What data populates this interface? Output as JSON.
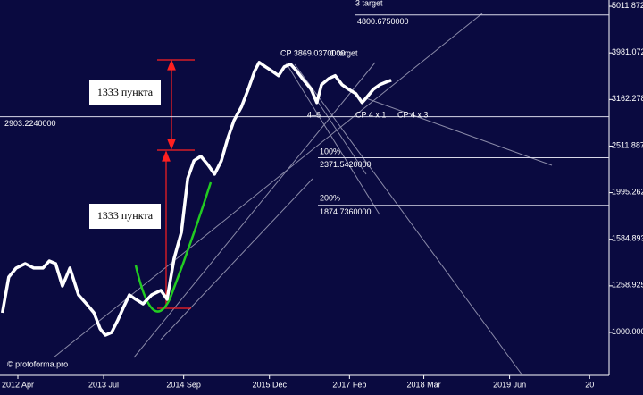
{
  "chart_data": {
    "type": "line",
    "log_scale": true,
    "x": [
      -2.7,
      -1.6,
      -0.3,
      1.3,
      2.8,
      4.4,
      5.5,
      6.6,
      7.8,
      9.1,
      10.6,
      12.0,
      13.3,
      14.4,
      15.3,
      16.4,
      17.5,
      18.4,
      19.5,
      20.6,
      21.9,
      23.4,
      25.0,
      26.1,
      27.3,
      28.6,
      29.7,
      30.8,
      32.0,
      33.3,
      34.4,
      35.6,
      36.7,
      37.8,
      39.1,
      40.3,
      41.4,
      42.2,
      43.3,
      44.5,
      45.6,
      46.6,
      47.7,
      48.8,
      50.0,
      51.3,
      52.3,
      53.1,
      54.4,
      55.5,
      56.7,
      57.8,
      59.1,
      60.2,
      60.9,
      62.2,
      63.3,
      64.4,
      65.3
    ],
    "series": [
      {
        "color": "#ffffff",
        "values": [
          1102,
          1315,
          1375,
          1405,
          1375,
          1375,
          1424,
          1405,
          1258,
          1375,
          1204,
          1152,
          1102,
          1018,
          987,
          1000,
          1064,
          1127,
          1204,
          1178,
          1152,
          1204,
          1231,
          1178,
          1437,
          1641,
          2140,
          2337,
          2388,
          2285,
          2186,
          2337,
          2609,
          2851,
          3047,
          3327,
          3636,
          3799,
          3717,
          3636,
          3556,
          3717,
          3765,
          3636,
          3478,
          3327,
          3114,
          3402,
          3509,
          3556,
          3402,
          3327,
          3254,
          3114,
          3183,
          3327,
          3402,
          3446,
          3478
        ]
      }
    ],
    "xlim": [
      -3.125,
      103.4
    ],
    "xticks": [
      {
        "value": 0,
        "label": "2012 Apr"
      },
      {
        "value": 15,
        "label": "2013 Jul"
      },
      {
        "value": 29,
        "label": "2014 Sep"
      },
      {
        "value": 44,
        "label": "2015 Dec"
      },
      {
        "value": 58,
        "label": "2017 Feb"
      },
      {
        "value": 71,
        "label": "2018 Mar"
      },
      {
        "value": 86,
        "label": "2019 Jun"
      },
      {
        "value": 100,
        "label": "20"
      }
    ],
    "ylim": [
      809,
      5170
    ],
    "yticks": [
      {
        "value": 1000,
        "label": "1000.000"
      },
      1258.925,
      1584.893,
      1995.262,
      2511.887,
      3162.278,
      3981.072,
      5011.872
    ],
    "levels": [
      2903.224,
      2371.542,
      1874.736,
      4800.675
    ],
    "level_labels": [
      "2903.2240000",
      "2371.5420000",
      "1874.7360000",
      "4800.6750000"
    ],
    "annotations": [
      "1333 пункта",
      "1333 пункта",
      "CP 3869.0370000",
      "1 target",
      "3 target",
      "100%",
      "200%",
      "4–6",
      "CP 4 x 1",
      "CP 4 x 3",
      "© protoforma.pro"
    ]
  }
}
